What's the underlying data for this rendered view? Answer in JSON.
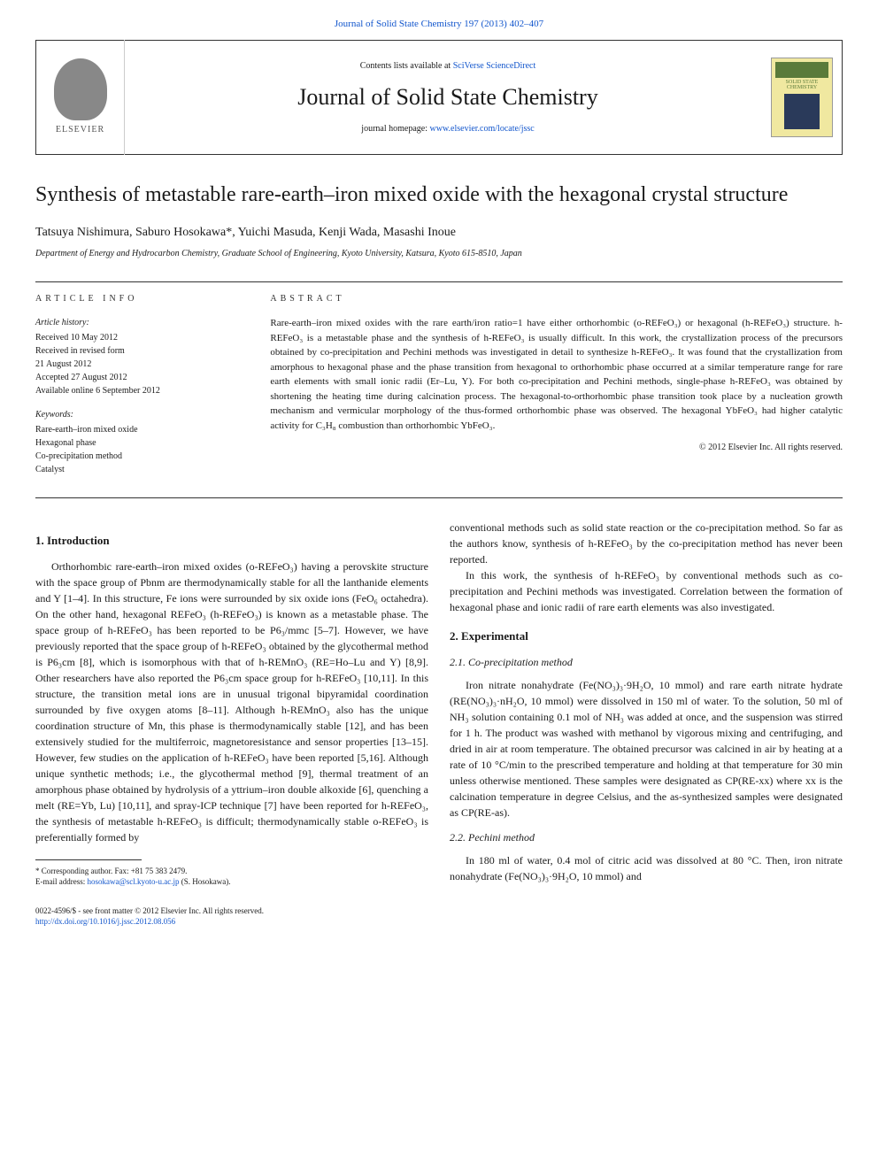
{
  "journal_ref_line": "Journal of Solid State Chemistry 197 (2013) 402–407",
  "header": {
    "contents_prefix": "Contents lists available at ",
    "contents_link": "SciVerse ScienceDirect",
    "journal_name": "Journal of Solid State Chemistry",
    "homepage_prefix": "journal homepage: ",
    "homepage_link": "www.elsevier.com/locate/jssc",
    "publisher": "ELSEVIER",
    "cover_label": "SOLID STATE CHEMISTRY"
  },
  "article": {
    "title": "Synthesis of metastable rare-earth–iron mixed oxide with the hexagonal crystal structure",
    "authors": "Tatsuya Nishimura, Saburo Hosokawa*, Yuichi Masuda, Kenji Wada, Masashi Inoue",
    "affiliation": "Department of Energy and Hydrocarbon Chemistry, Graduate School of Engineering, Kyoto University, Katsura, Kyoto 615-8510, Japan"
  },
  "info": {
    "label": "ARTICLE INFO",
    "history_title": "Article history:",
    "history": [
      "Received 10 May 2012",
      "Received in revised form",
      "21 August 2012",
      "Accepted 27 August 2012",
      "Available online 6 September 2012"
    ],
    "keywords_title": "Keywords:",
    "keywords": [
      "Rare-earth–iron mixed oxide",
      "Hexagonal phase",
      "Co-precipitation method",
      "Catalyst"
    ]
  },
  "abstract": {
    "label": "ABSTRACT",
    "text": "Rare-earth–iron mixed oxides with the rare earth/iron ratio=1 have either orthorhombic (o-REFeO₃) or hexagonal (h-REFeO₃) structure. h-REFeO₃ is a metastable phase and the synthesis of h-REFeO₃ is usually difficult. In this work, the crystallization process of the precursors obtained by co-precipitation and Pechini methods was investigated in detail to synthesize h-REFeO₃. It was found that the crystallization from amorphous to hexagonal phase and the phase transition from hexagonal to orthorhombic phase occurred at a similar temperature range for rare earth elements with small ionic radii (Er–Lu, Y). For both co-precipitation and Pechini methods, single-phase h-REFeO₃ was obtained by shortening the heating time during calcination process. The hexagonal-to-orthorhombic phase transition took place by a nucleation growth mechanism and vermicular morphology of the thus-formed orthorhombic phase was observed. The hexagonal YbFeO₃ had higher catalytic activity for C₃H₈ combustion than orthorhombic YbFeO₃.",
    "copyright": "© 2012 Elsevier Inc. All rights reserved."
  },
  "body": {
    "h_intro": "1. Introduction",
    "p1": "Orthorhombic rare-earth–iron mixed oxides (o-REFeO₃) having a perovskite structure with the space group of Pbnm are thermodynamically stable for all the lanthanide elements and Y [1–4]. In this structure, Fe ions were surrounded by six oxide ions (FeO₆ octahedra). On the other hand, hexagonal REFeO₃ (h-REFeO₃) is known as a metastable phase. The space group of h-REFeO₃ has been reported to be P6₃/mmc [5–7]. However, we have previously reported that the space group of h-REFeO₃ obtained by the glycothermal method is P6₃cm [8], which is isomorphous with that of h-REMnO₃ (RE=Ho–Lu and Y) [8,9]. Other researchers have also reported the P6₃cm space group for h-REFeO₃ [10,11]. In this structure, the transition metal ions are in unusual trigonal bipyramidal coordination surrounded by five oxygen atoms [8–11]. Although h-REMnO₃ also has the unique coordination structure of Mn, this phase is thermodynamically stable [12], and has been extensively studied for the multiferroic, magnetoresistance and sensor properties [13–15]. However, few studies on the application of h-REFeO₃ have been reported [5,16]. Although unique synthetic methods; i.e., the glycothermal method [9], thermal treatment of an amorphous phase obtained by hydrolysis of a yttrium–iron double alkoxide [6], quenching a melt (RE=Yb, Lu) [10,11], and spray-ICP technique [7] have been reported for h-REFeO₃, the synthesis of metastable h-REFeO₃ is difficult; thermodynamically stable o-REFeO₃ is preferentially formed by",
    "p2": "conventional methods such as solid state reaction or the co-precipitation method. So far as the authors know, synthesis of h-REFeO₃ by the co-precipitation method has never been reported.",
    "p3": "In this work, the synthesis of h-REFeO₃ by conventional methods such as co-precipitation and Pechini methods was investigated. Correlation between the formation of hexagonal phase and ionic radii of rare earth elements was also investigated.",
    "h_exp": "2. Experimental",
    "h_cp": "2.1. Co-precipitation method",
    "p4": "Iron nitrate nonahydrate (Fe(NO₃)₃·9H₂O, 10 mmol) and rare earth nitrate hydrate (RE(NO₃)₃·nH₂O, 10 mmol) were dissolved in 150 ml of water. To the solution, 50 ml of NH₃ solution containing 0.1 mol of NH₃ was added at once, and the suspension was stirred for 1 h. The product was washed with methanol by vigorous mixing and centrifuging, and dried in air at room temperature. The obtained precursor was calcined in air by heating at a rate of 10 °C/min to the prescribed temperature and holding at that temperature for 30 min unless otherwise mentioned. These samples were designated as CP(RE-xx) where xx is the calcination temperature in degree Celsius, and the as-synthesized samples were designated as CP(RE-as).",
    "h_pe": "2.2. Pechini method",
    "p5": "In 180 ml of water, 0.4 mol of citric acid was dissolved at 80 °C. Then, iron nitrate nonahydrate (Fe(NO₃)₃·9H₂O, 10 mmol) and"
  },
  "footnote": {
    "corr": "* Corresponding author. Fax: +81 75 383 2479.",
    "email_label": "E-mail address: ",
    "email": "hosokawa@scl.kyoto-u.ac.jp",
    "email_suffix": " (S. Hosokawa)."
  },
  "footer": {
    "issn": "0022-4596/$ - see front matter © 2012 Elsevier Inc. All rights reserved.",
    "doi": "http://dx.doi.org/10.1016/j.jssc.2012.08.056"
  },
  "style": {
    "link_color": "#1155cc",
    "text_color": "#1a1a1a",
    "border_color": "#333333",
    "cover_bg": "#f0e8a0",
    "cover_accent": "#5a7a3a",
    "cover_panel": "#2a3a5a"
  }
}
